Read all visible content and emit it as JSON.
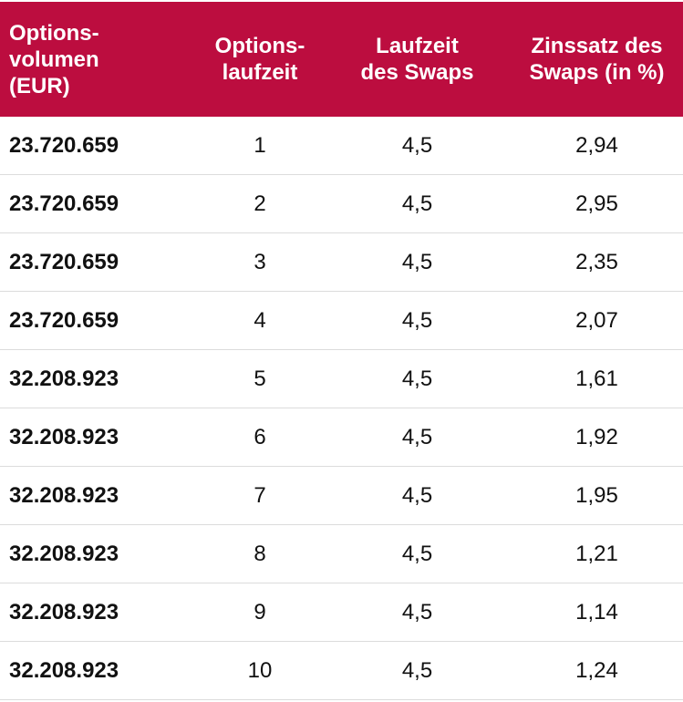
{
  "colors": {
    "header_bg": "#bc0d3f",
    "header_text": "#ffffff",
    "row_divider": "#dcdcdc"
  },
  "headers": [
    "Options-\nvolumen\n(EUR)",
    "Options-\nlaufzeit",
    "Laufzeit\ndes Swaps",
    "Zinssatz des\nSwaps (in %)"
  ],
  "rows": [
    [
      "23.720.659",
      "1",
      "4,5",
      "2,94"
    ],
    [
      "23.720.659",
      "2",
      "4,5",
      "2,95"
    ],
    [
      "23.720.659",
      "3",
      "4,5",
      "2,35"
    ],
    [
      "23.720.659",
      "4",
      "4,5",
      "2,07"
    ],
    [
      "32.208.923",
      "5",
      "4,5",
      "1,61"
    ],
    [
      "32.208.923",
      "6",
      "4,5",
      "1,92"
    ],
    [
      "32.208.923",
      "7",
      "4,5",
      "1,95"
    ],
    [
      "32.208.923",
      "8",
      "4,5",
      "1,21"
    ],
    [
      "32.208.923",
      "9",
      "4,5",
      "1,14"
    ],
    [
      "32.208.923",
      "10",
      "4,5",
      "1,24"
    ]
  ]
}
